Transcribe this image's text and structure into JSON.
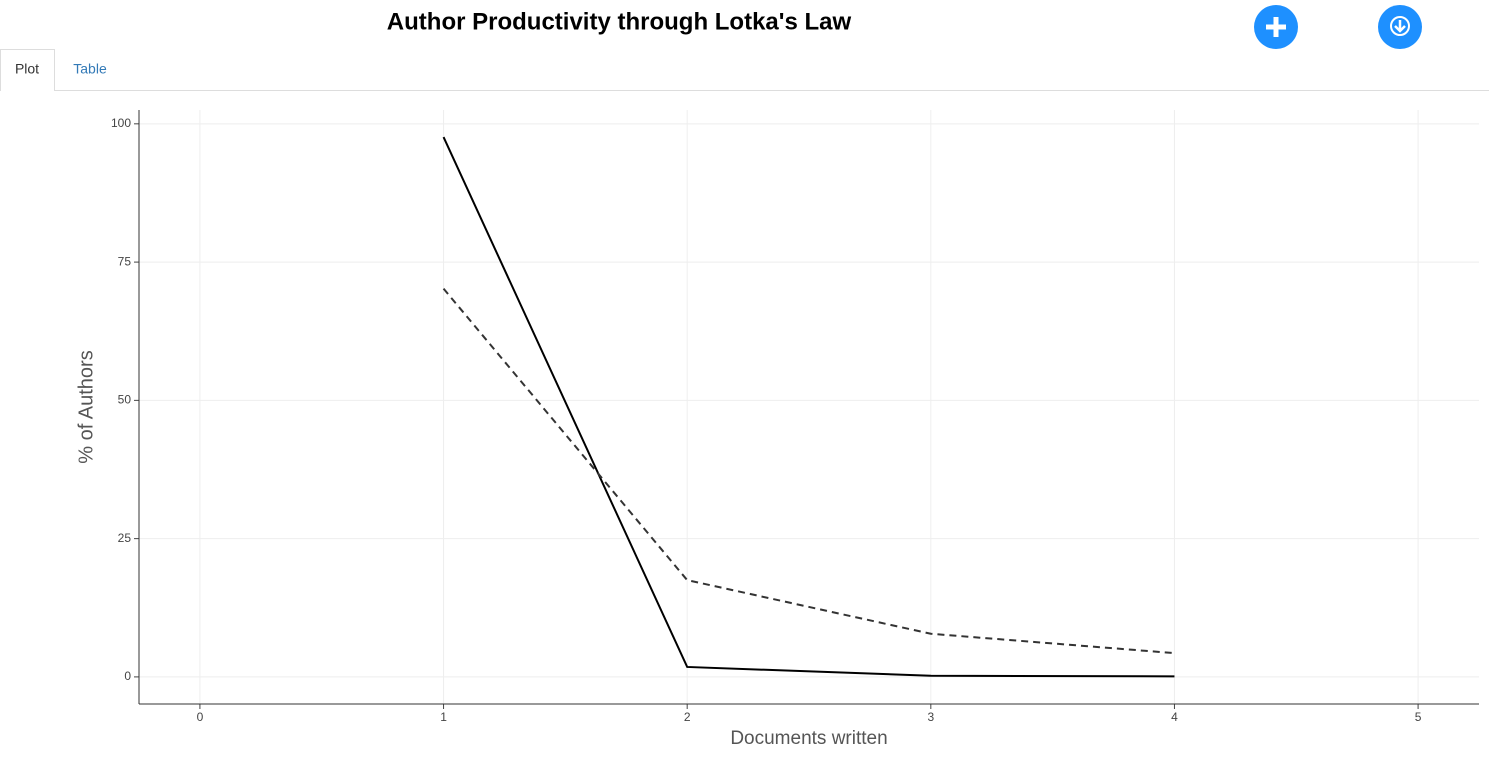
{
  "header": {
    "title": "Author Productivity through Lotka's Law"
  },
  "tabs": [
    "Plot",
    "Table"
  ],
  "chart_data": {
    "type": "line",
    "x_label": "Documents written",
    "y_label": "% of Authors",
    "x": [
      1,
      2,
      3,
      4
    ],
    "series": [
      {
        "color": "#000000",
        "dash": "solid",
        "values": [
          97.6,
          1.8,
          0.2,
          0.1
        ]
      },
      {
        "color": "#333333",
        "dash": "dashed",
        "values": [
          70.2,
          17.5,
          7.8,
          4.3
        ]
      }
    ],
    "xlim": [
      -0.25,
      5.25
    ],
    "xticks": [
      0,
      1,
      2,
      3,
      4,
      5
    ],
    "ylim": [
      -4.9,
      102.5
    ],
    "yticks": [
      0,
      25,
      50,
      75,
      100
    ],
    "grid": true
  }
}
